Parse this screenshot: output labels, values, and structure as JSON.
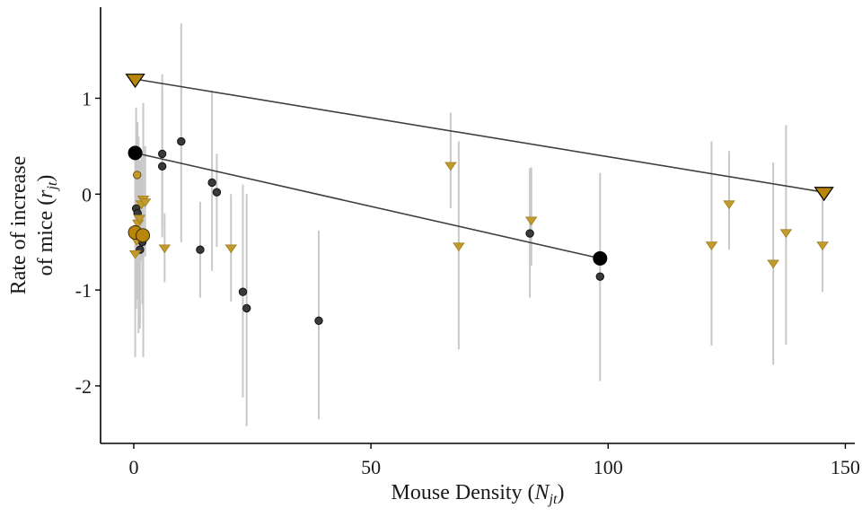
{
  "chart_data": {
    "type": "scatter",
    "title": "",
    "xlabel": {
      "prefix": "Mouse Density (",
      "var": "N",
      "sub": "jt",
      "suffix": ")"
    },
    "ylabel": {
      "line1": "Rate of increase",
      "line2_prefix": "of mice (",
      "var": "r",
      "sub": "jt",
      "line2_suffix": ")"
    },
    "xlim": [
      -7,
      152
    ],
    "ylim": [
      -2.6,
      1.95
    ],
    "xticks": [
      0,
      50,
      100,
      150
    ],
    "xtick_labels": [
      "0",
      "50",
      "100",
      "150"
    ],
    "yticks": [
      1,
      0,
      -1,
      -2
    ],
    "ytick_labels": [
      "1",
      "0",
      "-1",
      "-2"
    ],
    "grid": false,
    "legend": "none",
    "colors": {
      "black_series": "#3a3a3a",
      "gold_series": "#c29b2e",
      "gold_big": "#b8860b",
      "errorbar": "#c8c8c8",
      "line": "#404040"
    },
    "series": [
      {
        "marker": "circle",
        "points": [
          {
            "x": 0.5,
            "y": -0.15,
            "lo": -1.2,
            "hi": 0.9
          },
          {
            "x": 0.8,
            "y": -0.2,
            "lo": -1.1,
            "hi": 0.75
          },
          {
            "x": 1.0,
            "y": -0.45,
            "lo": -1.45,
            "hi": 0.6
          },
          {
            "x": 1.3,
            "y": -0.58,
            "lo": -1.4,
            "hi": 0.35
          },
          {
            "x": 1.8,
            "y": -0.5,
            "lo": -1.15,
            "hi": 0.2
          },
          {
            "x": 6,
            "y": 0.42,
            "lo": -0.35,
            "hi": 1.25
          },
          {
            "x": 6,
            "y": 0.29,
            "lo": -0.45,
            "hi": 1.1
          },
          {
            "x": 10,
            "y": 0.55,
            "lo": -0.5,
            "hi": 1.78
          },
          {
            "x": 14,
            "y": -0.58,
            "lo": -1.08,
            "hi": -0.08
          },
          {
            "x": 16.5,
            "y": 0.12,
            "lo": -0.8,
            "hi": 1.08
          },
          {
            "x": 17.5,
            "y": 0.02,
            "lo": -0.55,
            "hi": 0.42
          },
          {
            "x": 23,
            "y": -1.02,
            "lo": -2.12,
            "hi": 0.1
          },
          {
            "x": 23.8,
            "y": -1.19,
            "lo": -2.42,
            "hi": 0.0
          },
          {
            "x": 39,
            "y": -1.32,
            "lo": -2.35,
            "hi": -0.38
          },
          {
            "x": 83.5,
            "y": -0.41,
            "lo": -1.08,
            "hi": 0.27
          },
          {
            "x": 98.3,
            "y": -0.86,
            "lo": -1.95,
            "hi": 0.22
          }
        ],
        "big_points": [
          {
            "x": 0.3,
            "y": 0.43
          },
          {
            "x": 98.3,
            "y": -0.67
          }
        ],
        "fit": {
          "x": [
            0.3,
            98.3
          ],
          "y": [
            0.43,
            -0.67
          ]
        }
      },
      {
        "marker": "triangle-down",
        "points": [
          {
            "x": 0.3,
            "y": -0.62,
            "lo": -1.7,
            "hi": 0.45
          },
          {
            "x": 0.6,
            "y": -0.48,
            "lo": -1.05,
            "hi": 0.2
          },
          {
            "x": 0.9,
            "y": -0.3,
            "lo": -0.9,
            "hi": 0.4
          },
          {
            "x": 1.2,
            "y": -0.25,
            "lo": -0.8,
            "hi": 0.3
          },
          {
            "x": 1.6,
            "y": -0.1,
            "lo": -0.7,
            "hi": 0.45
          },
          {
            "x": 2.0,
            "y": -0.05,
            "lo": -1.7,
            "hi": 0.95
          },
          {
            "x": 2.4,
            "y": -0.08,
            "lo": -0.65,
            "hi": 0.5
          },
          {
            "x": 6.5,
            "y": -0.56,
            "lo": -0.92,
            "hi": -0.2
          },
          {
            "x": 20.5,
            "y": -0.56,
            "lo": -1.12,
            "hi": 0.0
          },
          {
            "x": 66.8,
            "y": 0.3,
            "lo": -0.15,
            "hi": 0.85
          },
          {
            "x": 68.5,
            "y": -0.54,
            "lo": -1.62,
            "hi": 0.55
          },
          {
            "x": 83.8,
            "y": -0.27,
            "lo": -0.75,
            "hi": 0.28
          },
          {
            "x": 121.8,
            "y": -0.53,
            "lo": -1.58,
            "hi": 0.55
          },
          {
            "x": 125.5,
            "y": -0.1,
            "lo": -0.58,
            "hi": 0.45
          },
          {
            "x": 134.8,
            "y": -0.72,
            "lo": -1.78,
            "hi": 0.33
          },
          {
            "x": 137.5,
            "y": -0.4,
            "lo": -1.57,
            "hi": 0.72
          },
          {
            "x": 145.2,
            "y": -0.53,
            "lo": -1.02,
            "hi": -0.05
          }
        ],
        "small_circles": [
          {
            "x": 0.7,
            "y": 0.2
          }
        ],
        "big_circles": [
          {
            "x": 0.3,
            "y": -0.4
          },
          {
            "x": 1.9,
            "y": -0.43
          }
        ],
        "big_points": [
          {
            "x": 0.3,
            "y": 1.2
          },
          {
            "x": 145.5,
            "y": 0.02
          }
        ],
        "fit": {
          "x": [
            0.3,
            145.5
          ],
          "y": [
            1.2,
            0.02
          ]
        }
      }
    ]
  }
}
